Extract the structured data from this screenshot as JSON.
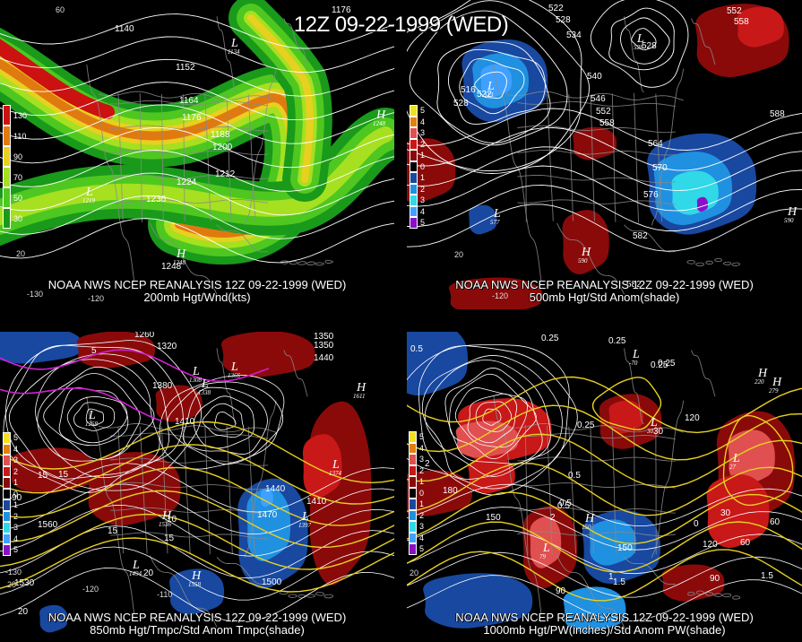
{
  "main_title": "12Z 09-22-1999 (WED)",
  "panels": [
    {
      "id": "p1",
      "caption_line1": "NOAA NWS NCEP REANALYSIS 12Z 09-22-1999 (WED)",
      "caption_line2": "200mb Hgt/Wnd(kts)",
      "legend": [
        {
          "label": "130",
          "color": "#cc1111"
        },
        {
          "label": "110",
          "color": "#e07a10"
        },
        {
          "label": "90",
          "color": "#e8d020"
        },
        {
          "label": "70",
          "color": "#a6e020"
        },
        {
          "label": "50",
          "color": "#4ec820"
        },
        {
          "label": "30",
          "color": "#1a9a1a"
        }
      ],
      "contour_labels": [
        "1140",
        "1152",
        "1164",
        "1176",
        "1188",
        "1200",
        "1212",
        "1224",
        "1236",
        "1248",
        "1176"
      ],
      "centers": [
        {
          "type": "L",
          "value": "1134"
        },
        {
          "type": "L",
          "value": "1219"
        },
        {
          "type": "H",
          "value": "1248"
        },
        {
          "type": "H",
          "value": "1248"
        }
      ],
      "axis_labels": [
        "60",
        "20",
        "-130",
        "-120"
      ]
    },
    {
      "id": "p2",
      "caption_line1": "NOAA NWS NCEP REANALYSIS 12Z 09-22-1999 (WED)",
      "caption_line2": "500mb Hgt/Std Anom(shade)",
      "legend": [
        {
          "label": "5",
          "color": "#f0e020"
        },
        {
          "label": "4",
          "color": "#e08010"
        },
        {
          "label": "3",
          "color": "#e05050"
        },
        {
          "label": "2",
          "color": "#c81818"
        },
        {
          "label": "1",
          "color": "#8a0a0a"
        },
        {
          "label": "0",
          "color": "#000000"
        },
        {
          "label": "1",
          "color": "#1848a0"
        },
        {
          "label": "2",
          "color": "#2090e0"
        },
        {
          "label": "3",
          "color": "#30d8e8"
        },
        {
          "label": "4",
          "color": "#40a0ff"
        },
        {
          "label": "5",
          "color": "#8a10c8"
        }
      ],
      "contour_labels": [
        "522",
        "528",
        "534",
        "540",
        "546",
        "552",
        "558",
        "564",
        "570",
        "576",
        "582",
        "588",
        "516",
        "522",
        "528",
        "552",
        "558",
        "528",
        "582"
      ],
      "centers": [
        {
          "type": "L",
          "value": "513"
        },
        {
          "type": "L",
          "value": "528"
        },
        {
          "type": "L",
          "value": "577"
        },
        {
          "type": "H",
          "value": "590"
        },
        {
          "type": "H",
          "value": "590"
        }
      ],
      "axis_labels": [
        "20",
        "-120"
      ]
    },
    {
      "id": "p3",
      "caption_line1": "NOAA NWS NCEP REANALYSIS 12Z 09-22-1999 (WED)",
      "caption_line2": "850mb Hgt/Tmpc/Std Anom Tmpc(shade)",
      "legend": [
        {
          "label": "5",
          "color": "#f0e020"
        },
        {
          "label": "4",
          "color": "#e08010"
        },
        {
          "label": "3",
          "color": "#e05050"
        },
        {
          "label": "2",
          "color": "#c81818"
        },
        {
          "label": "1",
          "color": "#8a0a0a"
        },
        {
          "label": "0",
          "color": "#000000"
        },
        {
          "label": "1",
          "color": "#1848a0"
        },
        {
          "label": "2",
          "color": "#2090e0"
        },
        {
          "label": "3",
          "color": "#30d8e8"
        },
        {
          "label": "4",
          "color": "#40a0ff"
        },
        {
          "label": "5",
          "color": "#8a10c8"
        }
      ],
      "contour_labels": [
        "1260",
        "1320",
        "1380",
        "1350",
        "1410",
        "1440",
        "1470",
        "1500",
        "1530",
        "1560",
        "1590",
        "1410",
        "1350",
        "1440",
        "15",
        "15",
        "10",
        "15",
        "20",
        "20",
        "5",
        "15"
      ],
      "centers": [
        {
          "type": "L",
          "value": "1258"
        },
        {
          "type": "L",
          "value": "1308"
        },
        {
          "type": "L",
          "value": "1366"
        },
        {
          "type": "L",
          "value": "1338"
        },
        {
          "type": "L",
          "value": "1397"
        },
        {
          "type": "L",
          "value": "1374"
        },
        {
          "type": "H",
          "value": "1611"
        },
        {
          "type": "H",
          "value": "1536"
        },
        {
          "type": "L",
          "value": "1494"
        },
        {
          "type": "H",
          "value": "1558"
        }
      ],
      "axis_labels": [
        "-130",
        "-120",
        "-110",
        "20"
      ]
    },
    {
      "id": "p4",
      "caption_line1": "NOAA NWS NCEP REANALYSIS 12Z 09-22-1999 (WED)",
      "caption_line2": "1000mb Hgt/PW(inches)/Std Anom PW(shade)",
      "legend": [
        {
          "label": "5",
          "color": "#f0e020"
        },
        {
          "label": "4",
          "color": "#e08010"
        },
        {
          "label": "3",
          "color": "#e05050"
        },
        {
          "label": "2",
          "color": "#c81818"
        },
        {
          "label": "1",
          "color": "#8a0a0a"
        },
        {
          "label": "0",
          "color": "#000000"
        },
        {
          "label": "1",
          "color": "#1848a0"
        },
        {
          "label": "2",
          "color": "#2090e0"
        },
        {
          "label": "3",
          "color": "#30d8e8"
        },
        {
          "label": "4",
          "color": "#40a0ff"
        },
        {
          "label": "5",
          "color": "#8a10c8"
        }
      ],
      "contour_labels": [
        "0.5",
        "0.25",
        "0.25",
        "0.25",
        "0.5",
        "0.25",
        "0.5",
        "1",
        "1.5",
        "1.5",
        "2",
        "2",
        "120",
        "150",
        "180",
        "90",
        "60",
        "30",
        "120",
        "150",
        "90",
        "60",
        "30",
        "0",
        "0.5",
        "0.25"
      ],
      "centers": [
        {
          "type": "L",
          "value": "30"
        },
        {
          "type": "L",
          "value": "-70"
        },
        {
          "type": "L",
          "value": "27"
        },
        {
          "type": "H",
          "value": "220"
        },
        {
          "type": "H",
          "value": "279"
        },
        {
          "type": "H",
          "value": "150"
        },
        {
          "type": "L",
          "value": "79"
        }
      ],
      "axis_labels": [
        "20"
      ]
    }
  ]
}
